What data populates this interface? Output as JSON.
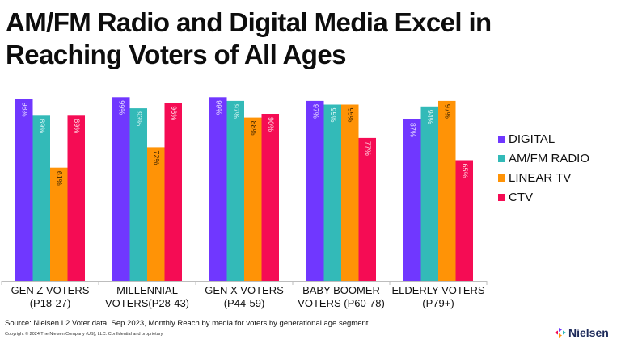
{
  "title": "AM/FM Radio and Digital Media Excel in Reaching Voters of All Ages",
  "footer": {
    "source": "Source: Nielsen L2 Voter data, Sep 2023, Monthly Reach by media for voters by generational age segment",
    "copyright": "Copyright © 2024 The Nielsen Company (US), LLC. Confidential and proprietary.",
    "logo_text": "Nielsen",
    "logo_icon": "nielsen-logo-icon"
  },
  "chart_data": {
    "type": "bar",
    "title": "AM/FM Radio and Digital Media Excel in Reaching Voters of All Ages",
    "xlabel": "",
    "ylabel": "",
    "ylim": [
      0,
      100
    ],
    "grid": false,
    "legend_position": "right",
    "categories": [
      [
        "GEN Z VOTERS",
        "(P18-27)"
      ],
      [
        "MILLENNIAL",
        "VOTERS(P28-43)"
      ],
      [
        "GEN X VOTERS",
        "(P44-59)"
      ],
      [
        "BABY BOOMER",
        "VOTERS (P60-78)"
      ],
      [
        "ELDERLY VOTERS",
        "(P79+)"
      ]
    ],
    "series": [
      {
        "name": "DIGITAL",
        "color": "#7037ff",
        "label_color": "#e6dcff",
        "values": [
          98,
          99,
          99,
          97,
          87
        ]
      },
      {
        "name": "AM/FM RADIO",
        "color": "#33bab8",
        "label_color": "#d9f5f4",
        "values": [
          89,
          93,
          97,
          95,
          94
        ]
      },
      {
        "name": "LINEAR TV",
        "color": "#ff9306",
        "label_color": "#3a2200",
        "values": [
          61,
          72,
          88,
          95,
          97
        ]
      },
      {
        "name": "CTV",
        "color": "#f50c54",
        "label_color": "#ffd6e2",
        "values": [
          89,
          96,
          90,
          77,
          65
        ]
      }
    ],
    "value_suffix": "%"
  }
}
